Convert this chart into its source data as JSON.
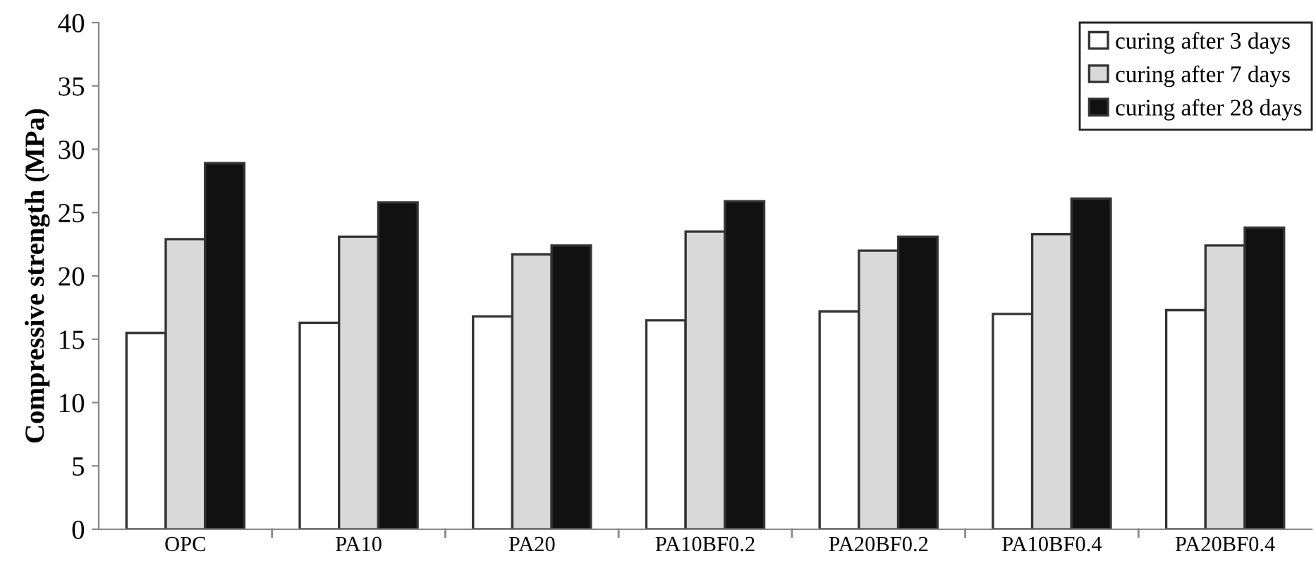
{
  "chart_data": {
    "type": "bar",
    "ylabel": "Compressive strength (MPa)",
    "categories": [
      "OPC",
      "PA10",
      "PA20",
      "PA10BF0.2",
      "PA20BF0.2",
      "PA10BF0.4",
      "PA20BF0.4"
    ],
    "series": [
      {
        "name": "curing after 3 days",
        "color": "#ffffff",
        "values": [
          15.5,
          16.3,
          16.8,
          16.5,
          17.2,
          17.0,
          17.3
        ]
      },
      {
        "name": "curing after 7 days",
        "color": "#d9d9d9",
        "values": [
          22.9,
          23.1,
          21.7,
          23.5,
          22.0,
          23.3,
          22.4
        ]
      },
      {
        "name": "curing after 28 days",
        "color": "#111111",
        "values": [
          28.9,
          25.8,
          22.4,
          25.9,
          23.1,
          26.1,
          23.8
        ]
      }
    ],
    "ylim": [
      0,
      40
    ],
    "yticks": [
      0,
      5,
      10,
      15,
      20,
      25,
      30,
      35,
      40
    ],
    "grid": false,
    "legend": "top right"
  }
}
